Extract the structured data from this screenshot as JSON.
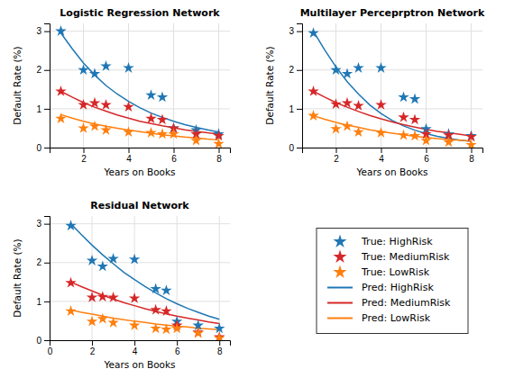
{
  "chart_data": [
    {
      "type": "line",
      "title": "Logistic Regression Network",
      "xlabel": "Years on Books",
      "ylabel": "Default Rate (%)",
      "xlim": [
        0.5,
        8.5
      ],
      "ylim": [
        0,
        3.2
      ],
      "xticks": [
        2,
        4,
        6,
        8
      ],
      "yticks": [
        0,
        1,
        2,
        3
      ],
      "grid": true,
      "series": [
        {
          "name": "True: HighRisk",
          "type": "scatter",
          "marker": "star",
          "color": "#1f77b4",
          "x": [
            1,
            2,
            2.5,
            3,
            4,
            5,
            5.5,
            6,
            7,
            8
          ],
          "values": [
            3.0,
            2.0,
            1.9,
            2.1,
            2.05,
            1.35,
            1.3,
            0.5,
            0.45,
            0.35
          ]
        },
        {
          "name": "True: MediumRisk",
          "type": "scatter",
          "marker": "star",
          "color": "#d62728",
          "x": [
            1,
            2,
            2.5,
            3,
            4,
            5,
            5.5,
            6,
            7,
            8
          ],
          "values": [
            1.45,
            1.1,
            1.15,
            1.1,
            1.05,
            0.75,
            0.72,
            0.5,
            0.35,
            0.3
          ]
        },
        {
          "name": "True: LowRisk",
          "type": "scatter",
          "marker": "star",
          "color": "#ff7f0e",
          "x": [
            1,
            2,
            2.5,
            3,
            4,
            5,
            5.5,
            6,
            7,
            8
          ],
          "values": [
            0.75,
            0.5,
            0.55,
            0.45,
            0.4,
            0.38,
            0.35,
            0.35,
            0.18,
            0.1
          ]
        },
        {
          "name": "Pred: HighRisk",
          "type": "line",
          "color": "#1f77b4",
          "x": [
            1,
            1.5,
            2,
            2.5,
            3,
            3.5,
            4,
            4.5,
            5,
            5.5,
            6,
            6.5,
            7,
            7.5,
            8
          ],
          "values": [
            2.95,
            2.55,
            2.18,
            1.87,
            1.6,
            1.38,
            1.19,
            1.03,
            0.89,
            0.78,
            0.68,
            0.59,
            0.52,
            0.46,
            0.4
          ]
        },
        {
          "name": "Pred: MediumRisk",
          "type": "line",
          "color": "#d62728",
          "x": [
            1,
            1.5,
            2,
            2.5,
            3,
            3.5,
            4,
            4.5,
            5,
            5.5,
            6,
            6.5,
            7,
            7.5,
            8
          ],
          "values": [
            1.45,
            1.3,
            1.16,
            1.04,
            0.94,
            0.84,
            0.76,
            0.68,
            0.62,
            0.56,
            0.51,
            0.46,
            0.42,
            0.38,
            0.35
          ]
        },
        {
          "name": "Pred: LowRisk",
          "type": "line",
          "color": "#ff7f0e",
          "x": [
            1,
            1.5,
            2,
            2.5,
            3,
            3.5,
            4,
            4.5,
            5,
            5.5,
            6,
            6.5,
            7,
            7.5,
            8
          ],
          "values": [
            0.85,
            0.76,
            0.68,
            0.61,
            0.55,
            0.5,
            0.45,
            0.41,
            0.37,
            0.33,
            0.3,
            0.27,
            0.25,
            0.22,
            0.2
          ]
        }
      ]
    },
    {
      "type": "line",
      "title": "Multilayer Perceprptron Network",
      "xlabel": "Years on Books",
      "ylabel": "Default Rate (%)",
      "xlim": [
        0.5,
        8.5
      ],
      "ylim": [
        0,
        3.2
      ],
      "xticks": [
        2,
        4,
        6,
        8
      ],
      "yticks": [
        0,
        1,
        2,
        3
      ],
      "grid": true,
      "series": [
        {
          "name": "True: HighRisk",
          "type": "scatter",
          "marker": "star",
          "color": "#1f77b4",
          "x": [
            1,
            2,
            2.5,
            3,
            4,
            5,
            5.5,
            6,
            7,
            8
          ],
          "values": [
            2.95,
            2.0,
            1.9,
            2.05,
            2.05,
            1.3,
            1.25,
            0.48,
            0.35,
            0.3
          ]
        },
        {
          "name": "True: MediumRisk",
          "type": "scatter",
          "marker": "star",
          "color": "#d62728",
          "x": [
            1,
            2,
            2.5,
            3,
            4,
            5,
            5.5,
            6,
            7,
            8
          ],
          "values": [
            1.45,
            1.12,
            1.15,
            1.08,
            1.1,
            0.78,
            0.72,
            0.35,
            0.32,
            0.28
          ]
        },
        {
          "name": "True: LowRisk",
          "type": "scatter",
          "marker": "star",
          "color": "#ff7f0e",
          "x": [
            1,
            2,
            2.5,
            3,
            4,
            5,
            5.5,
            6,
            7,
            8
          ],
          "values": [
            0.82,
            0.48,
            0.55,
            0.4,
            0.38,
            0.32,
            0.3,
            0.18,
            0.14,
            0.07
          ]
        },
        {
          "name": "Pred: HighRisk",
          "type": "line",
          "color": "#1f77b4",
          "x": [
            1,
            1.5,
            2,
            2.5,
            3,
            3.5,
            4,
            4.5,
            5,
            5.5,
            6,
            6.5,
            7,
            7.5,
            8
          ],
          "values": [
            3.0,
            2.52,
            2.08,
            1.7,
            1.38,
            1.1,
            0.88,
            0.7,
            0.56,
            0.45,
            0.36,
            0.29,
            0.24,
            0.19,
            0.16
          ]
        },
        {
          "name": "Pred: MediumRisk",
          "type": "line",
          "color": "#d62728",
          "x": [
            1,
            1.5,
            2,
            2.5,
            3,
            3.5,
            4,
            4.5,
            5,
            5.5,
            6,
            6.5,
            7,
            7.5,
            8
          ],
          "values": [
            1.45,
            1.3,
            1.16,
            1.04,
            0.93,
            0.83,
            0.74,
            0.66,
            0.59,
            0.53,
            0.47,
            0.42,
            0.38,
            0.34,
            0.3
          ]
        },
        {
          "name": "Pred: LowRisk",
          "type": "line",
          "color": "#ff7f0e",
          "x": [
            1,
            1.5,
            2,
            2.5,
            3,
            3.5,
            4,
            4.5,
            5,
            5.5,
            6,
            6.5,
            7,
            7.5,
            8
          ],
          "values": [
            0.82,
            0.73,
            0.65,
            0.58,
            0.52,
            0.46,
            0.41,
            0.37,
            0.33,
            0.29,
            0.26,
            0.23,
            0.21,
            0.19,
            0.17
          ]
        }
      ]
    },
    {
      "type": "line",
      "title": "Residual Network",
      "xlabel": "Years on Books",
      "ylabel": "Default Rate (%)",
      "xlim": [
        0,
        8.5
      ],
      "ylim": [
        0,
        3.2
      ],
      "xticks": [
        0,
        2,
        4,
        6,
        8
      ],
      "yticks": [
        0,
        1,
        2,
        3
      ],
      "grid": true,
      "series": [
        {
          "name": "True: HighRisk",
          "type": "scatter",
          "marker": "star",
          "color": "#1f77b4",
          "x": [
            1,
            2,
            2.5,
            3,
            4,
            5,
            5.5,
            6,
            7,
            8
          ],
          "values": [
            2.95,
            2.05,
            1.9,
            2.1,
            2.08,
            1.32,
            1.28,
            0.48,
            0.38,
            0.3
          ]
        },
        {
          "name": "True: MediumRisk",
          "type": "scatter",
          "marker": "star",
          "color": "#d62728",
          "x": [
            1,
            2,
            2.5,
            3,
            4,
            5,
            5.5,
            6,
            7,
            8
          ],
          "values": [
            1.48,
            1.1,
            1.12,
            1.1,
            1.08,
            0.78,
            0.75,
            0.38,
            0.2,
            0.08
          ]
        },
        {
          "name": "True: LowRisk",
          "type": "scatter",
          "marker": "star",
          "color": "#ff7f0e",
          "x": [
            1,
            2,
            2.5,
            3,
            4,
            5,
            5.5,
            6,
            7,
            8
          ],
          "values": [
            0.75,
            0.48,
            0.55,
            0.45,
            0.38,
            0.3,
            0.28,
            0.3,
            0.18,
            0.05
          ]
        },
        {
          "name": "Pred: HighRisk",
          "type": "line",
          "color": "#1f77b4",
          "x": [
            1,
            1.5,
            2,
            2.5,
            3,
            3.5,
            4,
            4.5,
            5,
            5.5,
            6,
            6.5,
            7,
            7.5,
            8
          ],
          "values": [
            3.0,
            2.72,
            2.45,
            2.2,
            1.97,
            1.75,
            1.56,
            1.38,
            1.22,
            1.07,
            0.94,
            0.82,
            0.72,
            0.62,
            0.54
          ]
        },
        {
          "name": "Pred: MediumRisk",
          "type": "line",
          "color": "#d62728",
          "x": [
            1,
            1.5,
            2,
            2.5,
            3,
            3.5,
            4,
            4.5,
            5,
            5.5,
            6,
            6.5,
            7,
            7.5,
            8
          ],
          "values": [
            1.5,
            1.38,
            1.27,
            1.16,
            1.06,
            0.97,
            0.89,
            0.81,
            0.74,
            0.68,
            0.62,
            0.57,
            0.52,
            0.47,
            0.43
          ]
        },
        {
          "name": "Pred: LowRisk",
          "type": "line",
          "color": "#ff7f0e",
          "x": [
            1,
            1.5,
            2,
            2.5,
            3,
            3.5,
            4,
            4.5,
            5,
            5.5,
            6,
            6.5,
            7,
            7.5,
            8
          ],
          "values": [
            0.78,
            0.72,
            0.67,
            0.62,
            0.57,
            0.53,
            0.49,
            0.46,
            0.42,
            0.39,
            0.36,
            0.34,
            0.31,
            0.29,
            0.27
          ]
        }
      ]
    }
  ]
}
